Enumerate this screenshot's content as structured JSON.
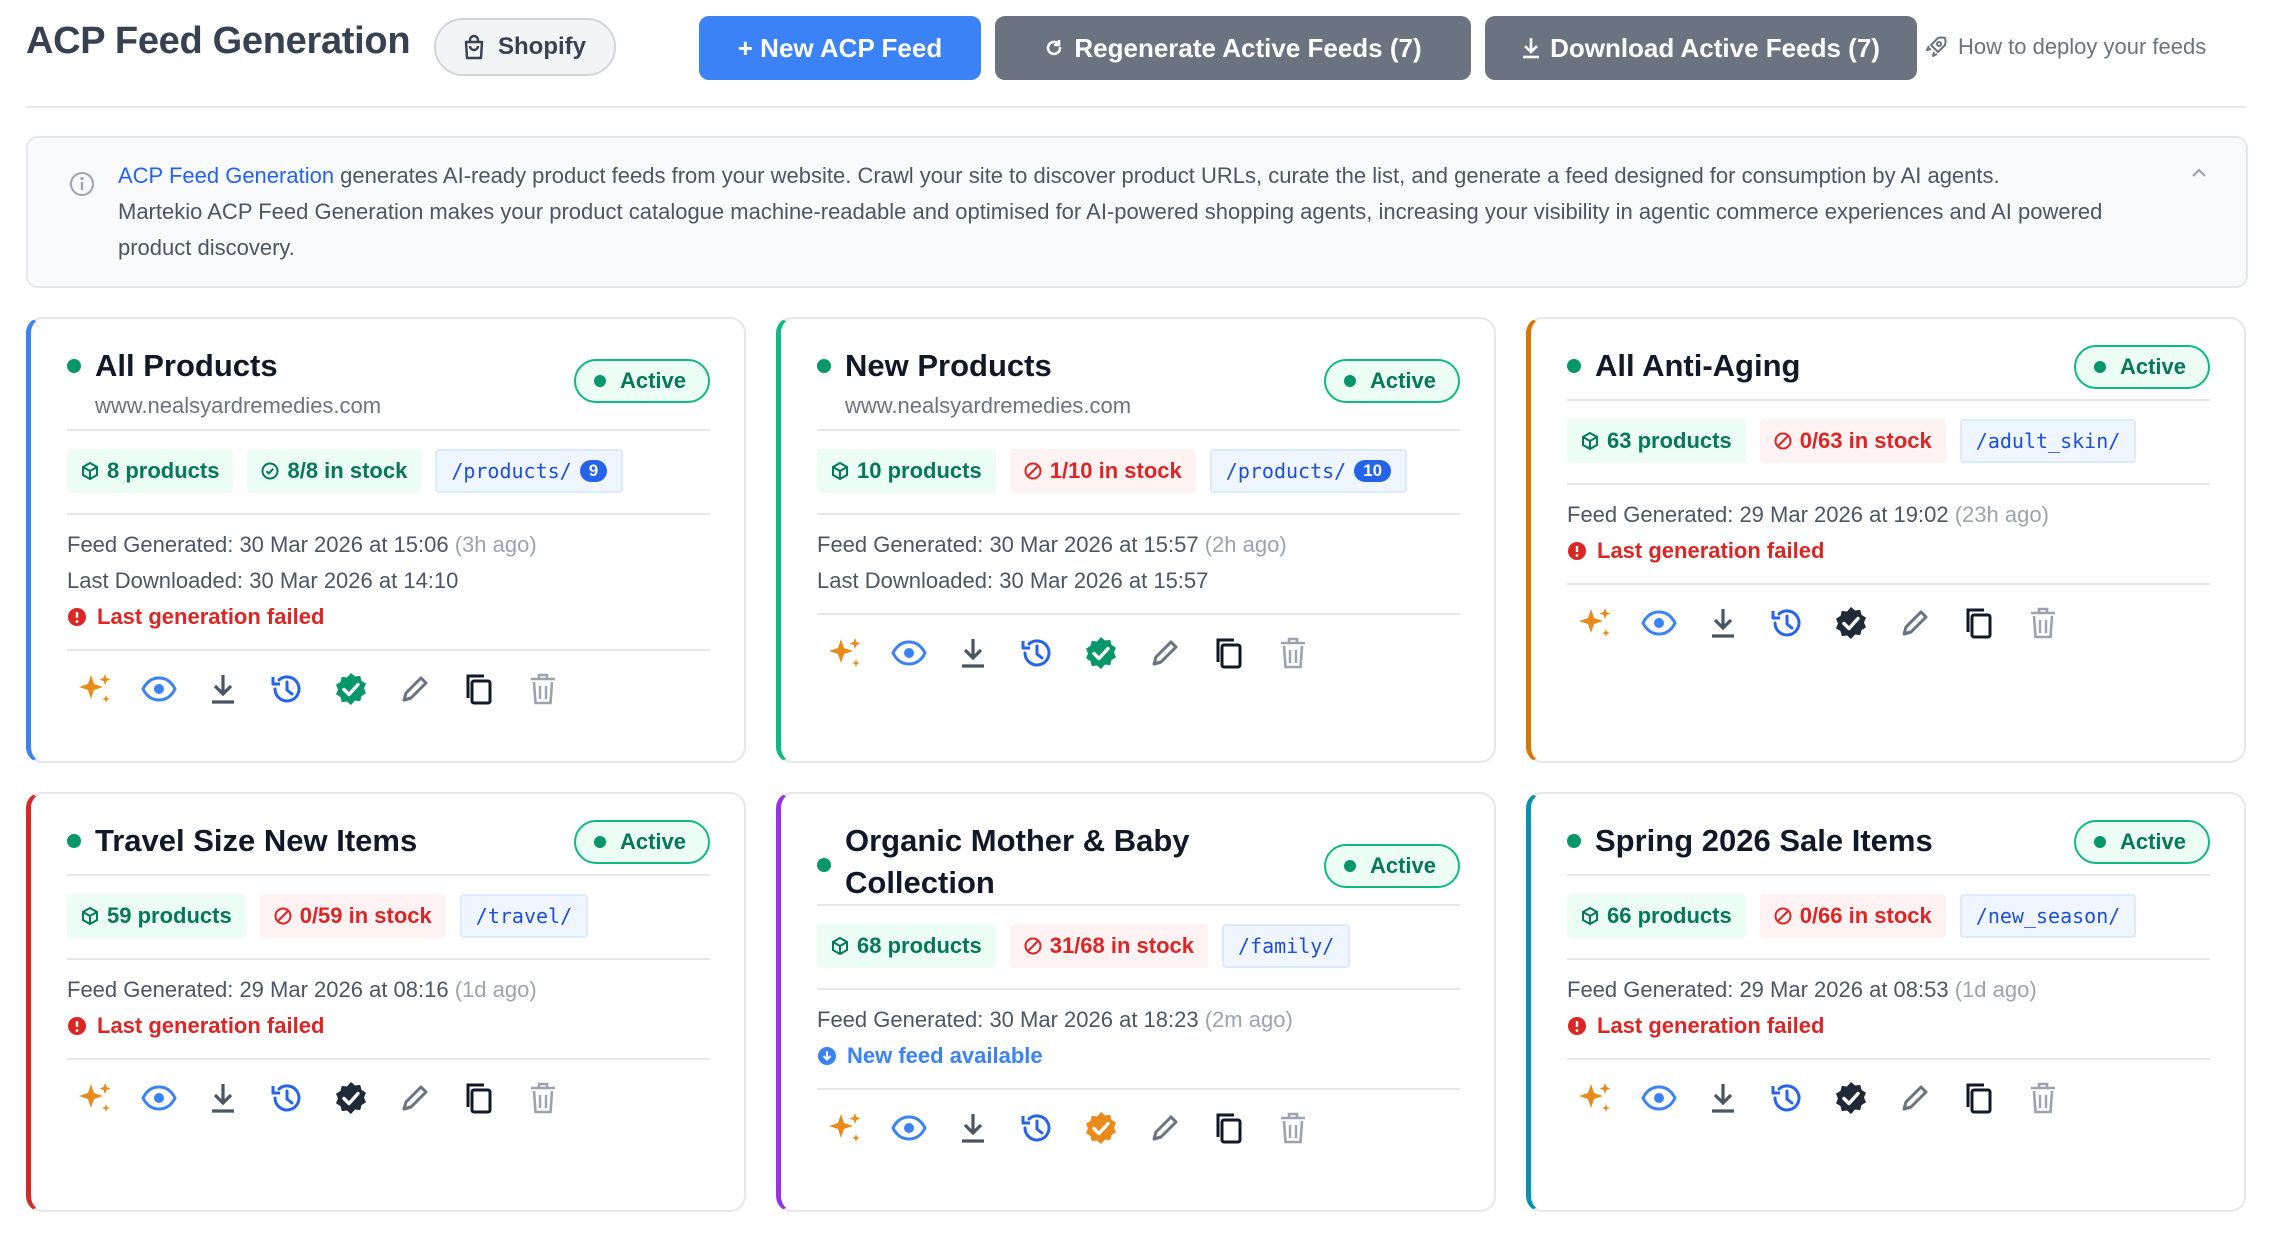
{
  "header": {
    "title": "ACP Feed Generation",
    "platform_label": "Shopify",
    "new_feed_label": "+ New ACP Feed",
    "regenerate_label": "Regenerate Active Feeds (7)",
    "download_label": "Download Active Feeds (7)",
    "deploy_label": "How to deploy your feeds"
  },
  "info": {
    "link_text": "ACP Feed Generation",
    "text_1": " generates AI-ready product feeds from your website. Crawl your site to discover product URLs, curate the list, and generate a feed designed for consumption by AI agents.",
    "text_2": "Martekio ACP Feed Generation makes your product catalogue machine-readable and optimised for AI-powered shopping agents, increasing your visibility in agentic commerce experiences and AI powered product discovery."
  },
  "status_badge": "Active",
  "cards": [
    {
      "title": "All Products",
      "domain": "www.nealsyardremedies.com",
      "accent": "#3b82f6",
      "products": "8 products",
      "stock": "8/8 in stock",
      "stock_ok": true,
      "path": "/products/",
      "path_count": "9",
      "generated": "Feed Generated: 30 Mar 2026 at 15:06",
      "generated_ago": "(3h ago)",
      "downloaded": "Last Downloaded: 30 Mar 2026 at 14:10",
      "status_text": "Last generation failed",
      "status_type": "fail",
      "verify_color": "#059669"
    },
    {
      "title": "New Products",
      "domain": "www.nealsyardremedies.com",
      "accent": "#10b981",
      "products": "10 products",
      "stock": "1/10 in stock",
      "stock_ok": false,
      "path": "/products/",
      "path_count": "10",
      "generated": "Feed Generated: 30 Mar 2026 at 15:57",
      "generated_ago": "(2h ago)",
      "downloaded": "Last Downloaded: 30 Mar 2026 at 15:57",
      "status_text": "",
      "status_type": "none",
      "verify_color": "#059669"
    },
    {
      "title": "All Anti-Aging",
      "domain": "",
      "accent": "#d97706",
      "products": "63 products",
      "stock": "0/63 in stock",
      "stock_ok": false,
      "path": "/adult_skin/",
      "path_count": "",
      "generated": "Feed Generated: 29 Mar 2026 at 19:02",
      "generated_ago": "(23h ago)",
      "downloaded": "",
      "status_text": "Last generation failed",
      "status_type": "fail",
      "verify_color": "#1f2937"
    },
    {
      "title": "Travel Size New Items",
      "domain": "",
      "accent": "#dc2626",
      "products": "59 products",
      "stock": "0/59 in stock",
      "stock_ok": false,
      "path": "/travel/",
      "path_count": "",
      "generated": "Feed Generated: 29 Mar 2026 at 08:16",
      "generated_ago": "(1d ago)",
      "downloaded": "",
      "status_text": "Last generation failed",
      "status_type": "fail",
      "verify_color": "#1f2937"
    },
    {
      "title": "Organic Mother & Baby Collection",
      "domain": "",
      "accent": "#9333ea",
      "products": "68 products",
      "stock": "31/68 in stock",
      "stock_ok": false,
      "path": "/family/",
      "path_count": "",
      "generated": "Feed Generated: 30 Mar 2026 at 18:23",
      "generated_ago": "(2m ago)",
      "downloaded": "",
      "status_text": "New feed available",
      "status_type": "new",
      "verify_color": "#ea8a1a"
    },
    {
      "title": "Spring 2026 Sale Items",
      "domain": "",
      "accent": "#0891b2",
      "products": "66 products",
      "stock": "0/66 in stock",
      "stock_ok": false,
      "path": "/new_season/",
      "path_count": "",
      "generated": "Feed Generated: 29 Mar 2026 at 08:53",
      "generated_ago": "(1d ago)",
      "downloaded": "",
      "status_text": "Last generation failed",
      "status_type": "fail",
      "verify_color": "#1f2937"
    }
  ],
  "action_icons": [
    "sparkles-icon",
    "eye-icon",
    "download-icon",
    "history-icon",
    "verified-icon",
    "pencil-icon",
    "copy-icon",
    "trash-icon"
  ]
}
